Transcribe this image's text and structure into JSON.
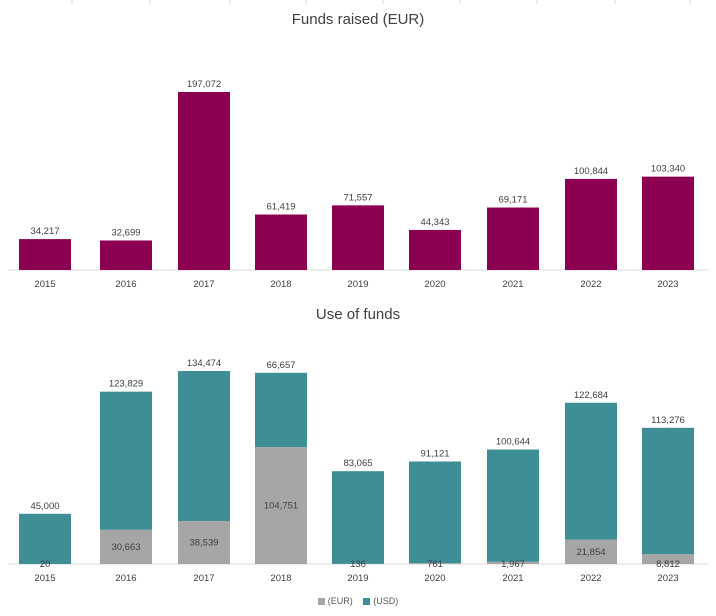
{
  "chart_data": [
    {
      "type": "bar",
      "title": "Funds raised (EUR)",
      "categories": [
        "2015",
        "2016",
        "2017",
        "2018",
        "2019",
        "2020",
        "2021",
        "2022",
        "2023"
      ],
      "values": [
        34217,
        32699,
        197072,
        61419,
        71557,
        44343,
        69171,
        100844,
        103340
      ],
      "value_labels": [
        "34,217",
        "32,699",
        "197,072",
        "61,419",
        "71,557",
        "44,343",
        "69,171",
        "100,844",
        "103,340"
      ],
      "color": "#8B0050",
      "grid": false,
      "legend": "none"
    },
    {
      "type": "bar",
      "stacked": true,
      "title": "Use of funds",
      "categories": [
        "2015",
        "2016",
        "2017",
        "2018",
        "2019",
        "2020",
        "2021",
        "2022",
        "2023"
      ],
      "series": [
        {
          "name": "(EUR)",
          "color": "#A6A6A6",
          "values": [
            20,
            30663,
            38539,
            104751,
            136,
            761,
            1967,
            21854,
            8812
          ],
          "value_labels": [
            "20",
            "30,663",
            "38,539",
            "104,751",
            "136",
            "761",
            "1,967",
            "21,854",
            "8,812"
          ]
        },
        {
          "name": "(USD)",
          "color": "#3E8E96",
          "values": [
            45000,
            123829,
            134474,
            66657,
            83065,
            91121,
            100644,
            122684,
            113276
          ],
          "value_labels": [
            "45,000",
            "123,829",
            "134,474",
            "66,657",
            "83,065",
            "91,121",
            "100,644",
            "122,684",
            "113,276"
          ]
        }
      ],
      "grid": false,
      "legend": "bottom-center"
    }
  ]
}
